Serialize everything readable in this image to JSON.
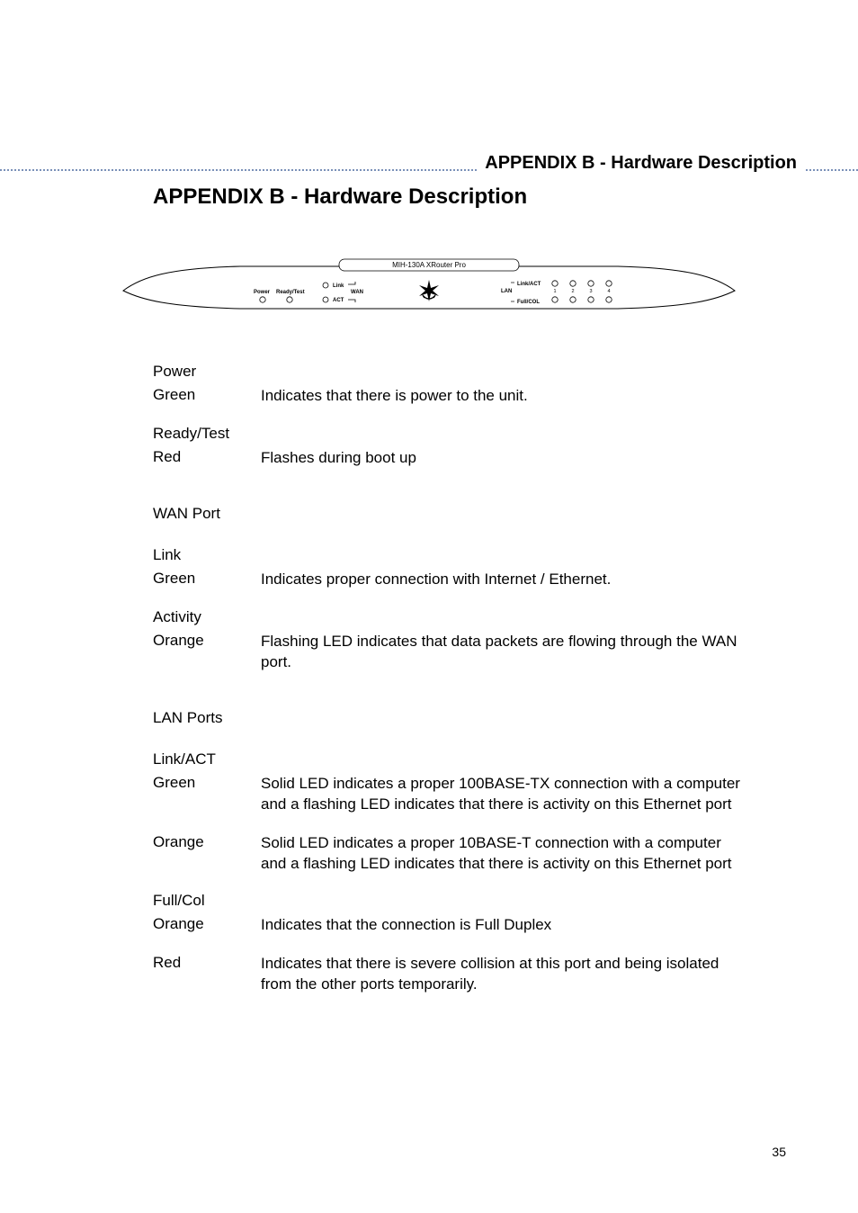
{
  "header": {
    "running_title": "APPENDIX B  - Hardware Description",
    "rule_color": "#7a90b8"
  },
  "main_title": "APPENDIX B  - Hardware Description",
  "diagram": {
    "model_label": "MIH-130A  XRouter Pro",
    "power_label": "Power",
    "ready_test_label": "Ready/Test",
    "link_label": "Link",
    "wan_label": "WAN",
    "act_label": "ACT",
    "lan_label": "LAN",
    "link_act_label": "Link/ACT",
    "full_col_label": "Full/COL",
    "port_numbers": [
      "1",
      "2",
      "3",
      "4"
    ]
  },
  "sections": [
    {
      "items": [
        {
          "label": "Power",
          "sub": [
            {
              "label": "Green",
              "desc": "Indicates that there is power to the unit."
            }
          ]
        },
        {
          "label": "Ready/Test",
          "sub": [
            {
              "label": "Red",
              "desc": "Flashes during boot up"
            }
          ]
        }
      ]
    },
    {
      "heading": "WAN Port",
      "items": [
        {
          "label": "Link",
          "sub": [
            {
              "label": "Green",
              "desc": "Indicates proper connection with Internet / Ethernet."
            }
          ]
        },
        {
          "label": "Activity",
          "sub": [
            {
              "label": "Orange",
              "desc": "Flashing LED indicates that data packets are flowing through the WAN port."
            }
          ]
        }
      ]
    },
    {
      "heading": "LAN Ports",
      "items": [
        {
          "label": "Link/ACT",
          "sub": [
            {
              "label": "Green",
              "desc": "Solid LED indicates a proper 100BASE-TX connection with a computer and a flashing LED indicates that there is activity on this Ethernet port"
            },
            {
              "label": "Orange",
              "desc": "Solid LED indicates a proper 10BASE-T connection with a computer and a flashing LED indicates that there is activity on this Ethernet port"
            }
          ]
        },
        {
          "label": "Full/Col",
          "sub": [
            {
              "label": "Orange",
              "desc": "Indicates that the connection is Full Duplex"
            },
            {
              "label": "Red",
              "desc": "Indicates that there is severe collision at this port and being isolated from the other ports temporarily."
            }
          ]
        }
      ]
    }
  ],
  "page_number": "35"
}
